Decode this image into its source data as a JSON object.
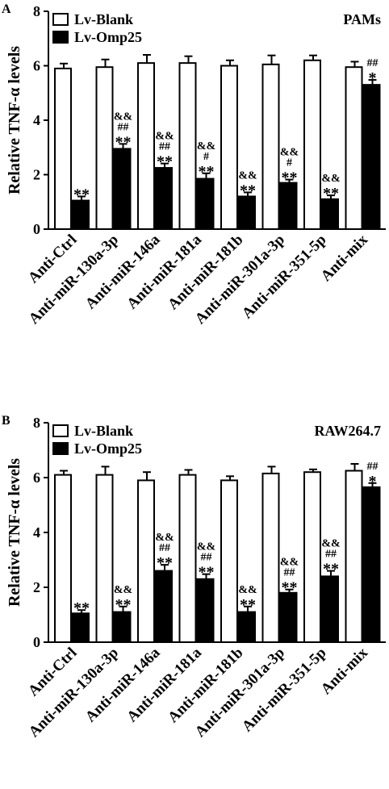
{
  "chart_data": [
    {
      "type": "bar",
      "panel": "A",
      "title": "PAMs",
      "ylabel": "Relative TNF-α levels",
      "categories": [
        "Anti-Ctrl",
        "Anti-miR-130a-3p",
        "Anti-miR-146a",
        "Anti-miR-181a",
        "Anti-miR-181b",
        "Anti-miR-301a-3p",
        "Anti-miR-351-5p",
        "Anti-mix"
      ],
      "series": [
        {
          "name": "Lv-Blank",
          "color": "#ffffff",
          "values": [
            5.9,
            5.95,
            6.1,
            6.1,
            6.0,
            6.05,
            6.2,
            5.95
          ],
          "errors": [
            0.18,
            0.28,
            0.3,
            0.25,
            0.2,
            0.33,
            0.18,
            0.2
          ]
        },
        {
          "name": "Lv-Omp25",
          "color": "#000000",
          "values": [
            1.05,
            2.95,
            2.25,
            1.85,
            1.2,
            1.7,
            1.1,
            5.3
          ],
          "errors": [
            0.15,
            0.18,
            0.16,
            0.2,
            0.15,
            0.12,
            0.14,
            0.18
          ]
        }
      ],
      "annotations": [
        [
          "**"
        ],
        [
          "&&",
          "##",
          "**"
        ],
        [
          "&&",
          "##",
          "**"
        ],
        [
          "&&",
          "#",
          "**"
        ],
        [
          "&&",
          "**"
        ],
        [
          "&&",
          "#",
          "**"
        ],
        [
          "&&",
          "**"
        ],
        [
          "##",
          "*"
        ]
      ],
      "ylim": [
        0,
        8
      ],
      "yticks": [
        0,
        2,
        4,
        6,
        8
      ]
    },
    {
      "type": "bar",
      "panel": "B",
      "title": "RAW264.7",
      "ylabel": "Relative TNF-α levels",
      "categories": [
        "Anti-Ctrl",
        "Anti-miR-130a-3p",
        "Anti-miR-146a",
        "Anti-miR-181a",
        "Anti-miR-181b",
        "Anti-miR-301a-3p",
        "Anti-miR-351-5p",
        "Anti-mix"
      ],
      "series": [
        {
          "name": "Lv-Blank",
          "color": "#ffffff",
          "values": [
            6.1,
            6.1,
            5.9,
            6.1,
            5.9,
            6.15,
            6.2,
            6.25
          ],
          "errors": [
            0.15,
            0.3,
            0.3,
            0.18,
            0.15,
            0.25,
            0.1,
            0.25
          ]
        },
        {
          "name": "Lv-Omp25",
          "color": "#000000",
          "values": [
            1.05,
            1.1,
            2.6,
            2.3,
            1.1,
            1.8,
            2.4,
            5.65
          ],
          "errors": [
            0.12,
            0.2,
            0.22,
            0.18,
            0.2,
            0.12,
            0.2,
            0.15
          ]
        }
      ],
      "annotations": [
        [
          "**"
        ],
        [
          "&&",
          "**"
        ],
        [
          "&&",
          "##",
          "**"
        ],
        [
          "&&",
          "##",
          "**"
        ],
        [
          "&&",
          "**"
        ],
        [
          "&&",
          "##",
          "**"
        ],
        [
          "&&",
          "##",
          "**"
        ],
        [
          "##",
          "*"
        ]
      ],
      "ylim": [
        0,
        8
      ],
      "yticks": [
        0,
        2,
        4,
        6,
        8
      ]
    }
  ]
}
